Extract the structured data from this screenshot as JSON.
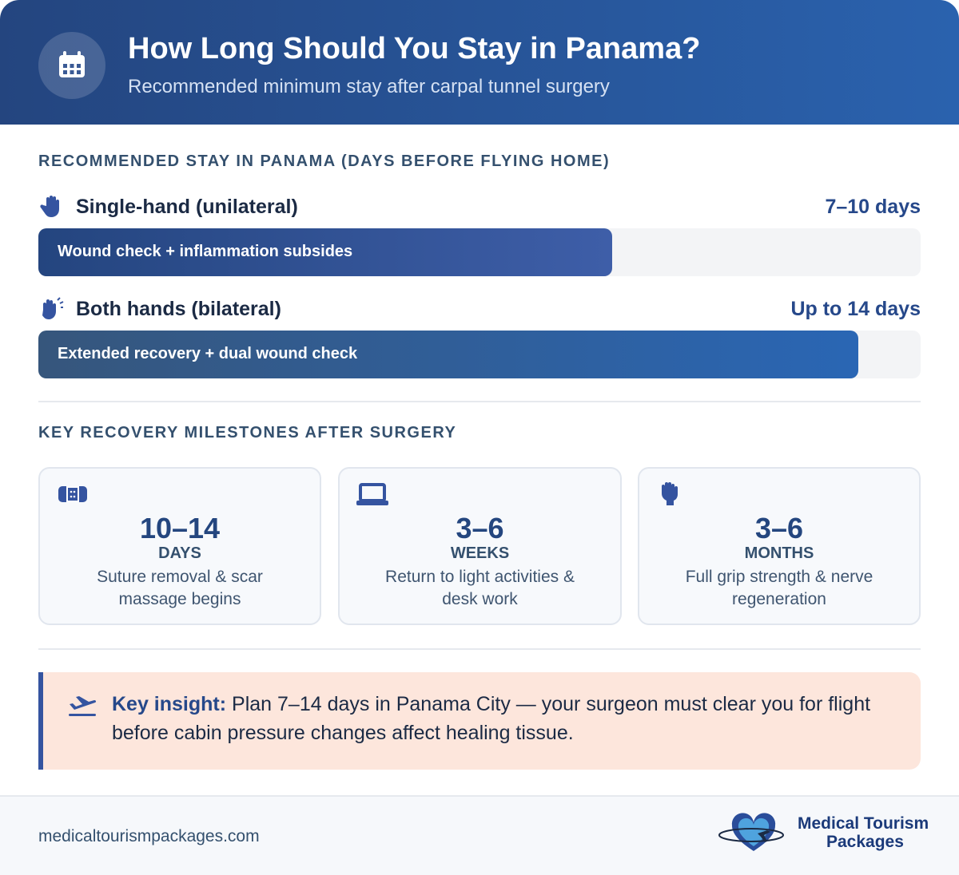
{
  "header": {
    "title": "How Long Should You Stay in Panama?",
    "subtitle": "Recommended minimum stay after carpal tunnel surgery"
  },
  "stay": {
    "heading": "RECOMMENDED STAY IN PANAMA (DAYS BEFORE FLYING HOME)",
    "items": [
      {
        "label": "Single-hand (unilateral)",
        "value": "7–10 days",
        "bar_text": "Wound check + inflammation subsides"
      },
      {
        "label": "Both hands (bilateral)",
        "value": "Up to 14 days",
        "bar_text": "Extended recovery + dual wound check"
      }
    ]
  },
  "milestones": {
    "heading": "KEY RECOVERY MILESTONES AFTER SURGERY",
    "items": [
      {
        "value": "10–14",
        "unit": "DAYS",
        "text": "Suture removal & scar massage begins"
      },
      {
        "value": "3–6",
        "unit": "WEEKS",
        "text": "Return to light activities & desk work"
      },
      {
        "value": "3–6",
        "unit": "MONTHS",
        "text": "Full grip strength & nerve regeneration"
      }
    ]
  },
  "insight": {
    "lead": "Key insight:",
    "text": "Plan 7–14 days in Panama City — your surgeon must clear you for flight before cabin pressure changes affect healing tissue."
  },
  "footer": {
    "url": "medicaltourismpackages.com",
    "logo_line1": "Medical Tourism",
    "logo_line2": "Packages"
  }
}
